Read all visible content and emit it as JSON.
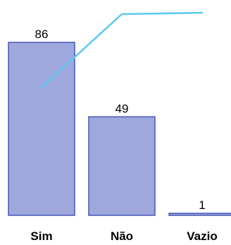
{
  "chart_data": {
    "type": "bar",
    "categories": [
      "Sim",
      "Não",
      "Vazio"
    ],
    "values": [
      86,
      49,
      1
    ],
    "line_series": {
      "type": "line",
      "values": [
        63.2,
        99.3,
        100
      ]
    },
    "ylim": [
      0,
      86
    ],
    "line_ylim": [
      0,
      100
    ],
    "grid": false,
    "colors": {
      "bar_fill": "#9fa8dc",
      "bar_stroke": "#4458b8",
      "line": "#5ac8f0"
    }
  }
}
